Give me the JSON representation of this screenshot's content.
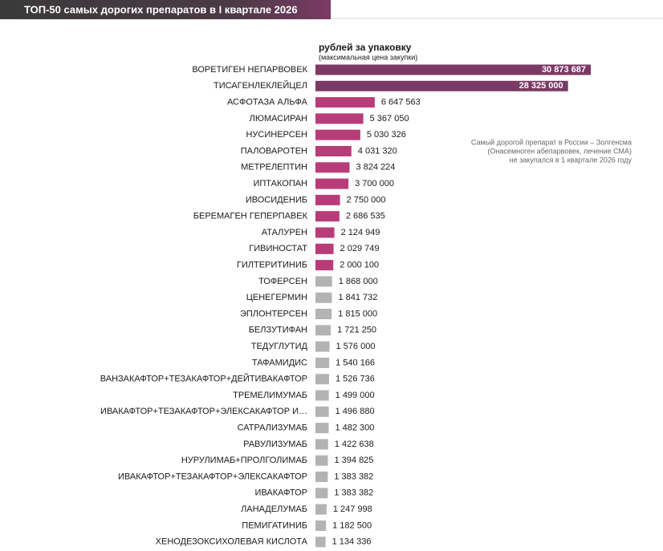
{
  "chart_data": {
    "type": "bar",
    "orientation": "horizontal",
    "title": "ТОП-50 самых дорогих препаратов в I квартале 2026",
    "subtitle": "рублей за упаковку",
    "subtitle_note": "(максимальная цена закупки)",
    "annotation": [
      "Самый дорогой препарат в России – Золгенсма",
      "(Онасемноген абепарвовек, лечение СМА)",
      "не закупался в 1 квартале 2026 году"
    ],
    "categories": [
      "ВОРЕТИГЕН НЕПАРВОВЕК",
      "ТИСАГЕНЛЕКЛЕЙЦЕЛ",
      "АСФОТАЗА АЛЬФА",
      "ЛЮМАСИРАН",
      "НУСИНЕРСЕН",
      "ПАЛОВАРОТЕН",
      "МЕТРЕЛЕПТИН",
      "ИПТАКОПАН",
      "ИВОСИДЕНИБ",
      "БЕРЕМАГЕН ГЕПЕРПАВЕК",
      "АТАЛУРЕН",
      "ГИВИНОСТАТ",
      "ГИЛТЕРИТИНИБ",
      "ТОФЕРСЕН",
      "ЦЕНЕГЕРМИН",
      "ЭПЛОНТЕРСЕН",
      "БЕЛЗУТИФАН",
      "ТЕДУГЛУТИД",
      "ТАФАМИДИС",
      "ВАНЗАКАФТОР+ТЕЗАКАФТОР+ДЕЙТИВАКАФТОР",
      "ТРЕМЕЛИМУМАБ",
      "ИВАКАФТОР+ТЕЗАКАФТОР+ЭЛЕКСАКАФТОР И…",
      "САТРАЛИЗУМАБ",
      "РАВУЛИЗУМАБ",
      "НУРУЛИМАБ+ПРОЛГОЛИМАБ",
      "ИВАКАФТОР+ТЕЗАКАФТОР+ЭЛЕКСАКАФТОР",
      "ИВАКАФТОР",
      "ЛАНАДЕЛУМАБ",
      "ПЕМИГАТИНИБ",
      "ХЕНОДЕЗОКСИХОЛЕВАЯ КИСЛОТА"
    ],
    "values": [
      30873687,
      28325000,
      6647563,
      5367050,
      5030326,
      4031320,
      3824224,
      3700000,
      2750000,
      2686535,
      2124949,
      2029749,
      2000100,
      1868000,
      1841732,
      1815000,
      1721250,
      1576000,
      1540166,
      1526736,
      1499000,
      1496880,
      1482300,
      1422638,
      1394825,
      1383382,
      1383382,
      1247998,
      1182500,
      1134336
    ],
    "value_labels": [
      "30 873 687",
      "28 325 000",
      "6 647 563",
      "5 367 050",
      "5 030 326",
      "4 031 320",
      "3 824 224",
      "3 700 000",
      "2 750 000",
      "2 686 535",
      "2 124 949",
      "2 029 749",
      "2 000 100",
      "1 868 000",
      "1 841 732",
      "1 815 000",
      "1 721 250",
      "1 576 000",
      "1 540 166",
      "1 526 736",
      "1 499 000",
      "1 496 880",
      "1 482 300",
      "1 422 638",
      "1 394 825",
      "1 383 382",
      "1 383 382",
      "1 247 998",
      "1 182 500",
      "1 134 336"
    ],
    "colors": [
      "#7a3a64",
      "#7a3a64",
      "#b83c78",
      "#b83c78",
      "#b83c78",
      "#b83c78",
      "#b83c78",
      "#b83c78",
      "#b83c78",
      "#b83c78",
      "#b83c78",
      "#b83c78",
      "#b83c78",
      "#b3b3b3",
      "#b3b3b3",
      "#b3b3b3",
      "#b3b3b3",
      "#b3b3b3",
      "#b3b3b3",
      "#b3b3b3",
      "#b3b3b3",
      "#b3b3b3",
      "#b3b3b3",
      "#b3b3b3",
      "#b3b3b3",
      "#b3b3b3",
      "#b3b3b3",
      "#b3b3b3",
      "#b3b3b3",
      "#b3b3b3"
    ]
  }
}
